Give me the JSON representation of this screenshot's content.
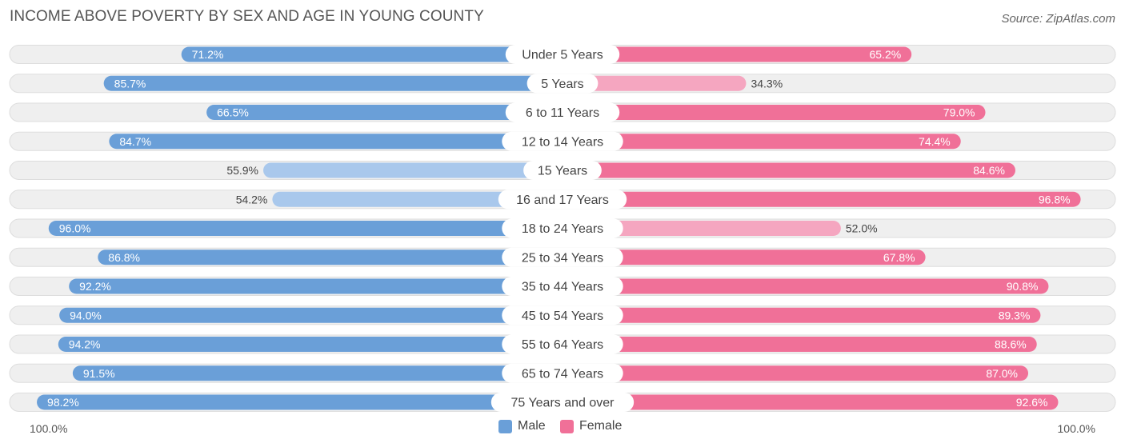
{
  "title": "INCOME ABOVE POVERTY BY SEX AND AGE IN YOUNG COUNTY",
  "source": "Source: ZipAtlas.com",
  "colors": {
    "male_strong": "#6a9fd8",
    "male_light": "#a9c8ec",
    "female_strong": "#f07098",
    "female_light": "#f5a6c0",
    "track": "#efefef",
    "track_border": "#dddddd"
  },
  "legend": {
    "male": "Male",
    "female": "Female"
  },
  "axis": {
    "left": "100.0%",
    "right": "100.0%"
  },
  "chart_data": {
    "type": "bar",
    "orientation": "horizontal-diverging",
    "title": "INCOME ABOVE POVERTY BY SEX AND AGE IN YOUNG COUNTY",
    "xlim": [
      0,
      100
    ],
    "categories": [
      "Under 5 Years",
      "5 Years",
      "6 to 11 Years",
      "12 to 14 Years",
      "15 Years",
      "16 and 17 Years",
      "18 to 24 Years",
      "25 to 34 Years",
      "35 to 44 Years",
      "45 to 54 Years",
      "55 to 64 Years",
      "65 to 74 Years",
      "75 Years and over"
    ],
    "series": [
      {
        "name": "Male",
        "values": [
          71.2,
          85.7,
          66.5,
          84.7,
          55.9,
          54.2,
          96.0,
          86.8,
          92.2,
          94.0,
          94.2,
          91.5,
          98.2
        ],
        "labels": [
          "71.2%",
          "85.7%",
          "66.5%",
          "84.7%",
          "55.9%",
          "54.2%",
          "96.0%",
          "86.8%",
          "92.2%",
          "94.0%",
          "94.2%",
          "91.5%",
          "98.2%"
        ]
      },
      {
        "name": "Female",
        "values": [
          65.2,
          34.3,
          79.0,
          74.4,
          84.6,
          96.8,
          52.0,
          67.8,
          90.8,
          89.3,
          88.6,
          87.0,
          92.6
        ],
        "labels": [
          "65.2%",
          "34.3%",
          "79.0%",
          "74.4%",
          "84.6%",
          "96.8%",
          "52.0%",
          "67.8%",
          "90.8%",
          "89.3%",
          "88.6%",
          "87.0%",
          "92.6%"
        ]
      }
    ]
  }
}
